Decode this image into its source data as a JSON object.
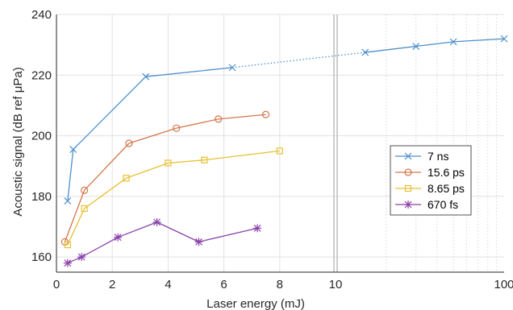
{
  "chart_data": {
    "type": "line",
    "xlabel": "Laser energy (mJ)",
    "ylabel": "Acoustic signal (dB ref μPa)",
    "ylim": [
      155,
      240
    ],
    "yticks": [
      160,
      180,
      200,
      220,
      240
    ],
    "x_axis": {
      "note": "linear from 0 to 10, logarithmic from 10 to 100, with an axis break at 10",
      "linear_range": [
        0,
        10
      ],
      "log_range": [
        10,
        100
      ],
      "ticks": [
        0,
        2,
        4,
        6,
        8,
        10,
        100
      ]
    },
    "grid": true,
    "legend_position": "right",
    "series": [
      {
        "name": "7 ns",
        "color": "#4d8fcb",
        "marker": "x",
        "x": [
          0.4,
          0.6,
          3.2,
          6.3,
          15,
          30,
          50,
          100
        ],
        "y": [
          178.5,
          195.5,
          219.5,
          222.5,
          227.5,
          229.5,
          231,
          232
        ],
        "dotted_segment_after_index": 3
      },
      {
        "name": "15.6 ps",
        "color": "#d3764a",
        "marker": "circle",
        "x": [
          0.3,
          1.0,
          2.6,
          4.3,
          5.8,
          7.5
        ],
        "y": [
          165,
          182,
          197.5,
          202.5,
          205.5,
          207
        ]
      },
      {
        "name": "8.65 ps",
        "color": "#e8c030",
        "marker": "square",
        "x": [
          0.4,
          1.0,
          2.5,
          4.0,
          5.3,
          8.0
        ],
        "y": [
          164,
          176,
          186,
          191,
          192,
          195
        ]
      },
      {
        "name": "670 fs",
        "color": "#8a42a8",
        "marker": "asterisk",
        "x": [
          0.4,
          0.9,
          2.2,
          3.6,
          5.1,
          7.2
        ],
        "y": [
          158,
          160,
          166.5,
          171.5,
          165,
          169.5
        ]
      }
    ]
  }
}
